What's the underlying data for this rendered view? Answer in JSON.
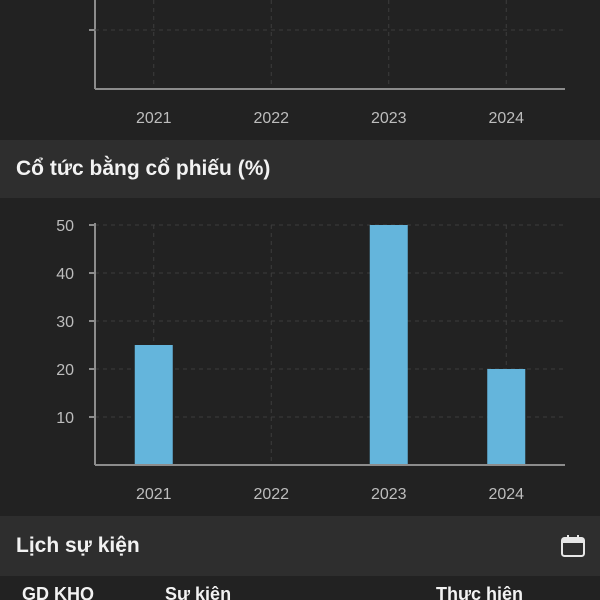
{
  "top_chart": {
    "x_ticks": [
      "2021",
      "2022",
      "2023",
      "2024"
    ]
  },
  "stock_dividend": {
    "title": "Cổ tức bằng cổ phiếu (%)"
  },
  "events": {
    "title": "Lịch sự kiện",
    "calendar_icon": "calendar-icon",
    "columns": [
      "GD KHQ",
      "Sự kiện",
      "Thực hiện"
    ]
  },
  "colors": {
    "background": "#222222",
    "header_bg": "#2e2e2e",
    "bar": "#64b5dc",
    "axis": "#8c8c8c",
    "grid": "#3c3c3c",
    "text": "#bdbdbd"
  },
  "chart_data": [
    {
      "type": "bar",
      "categories": [
        "2021",
        "2022",
        "2023",
        "2024"
      ],
      "values": [
        null,
        null,
        null,
        null
      ],
      "title": "",
      "xlabel": "",
      "ylabel": "",
      "grid": true
    },
    {
      "type": "bar",
      "categories": [
        "2021",
        "2022",
        "2023",
        "2024"
      ],
      "values": [
        25,
        0,
        50,
        20
      ],
      "y_ticks": [
        10,
        20,
        30,
        40,
        50
      ],
      "ylim": [
        0,
        50
      ],
      "title": "Cổ tức bằng cổ phiếu (%)",
      "xlabel": "",
      "ylabel": "",
      "grid": true
    }
  ]
}
